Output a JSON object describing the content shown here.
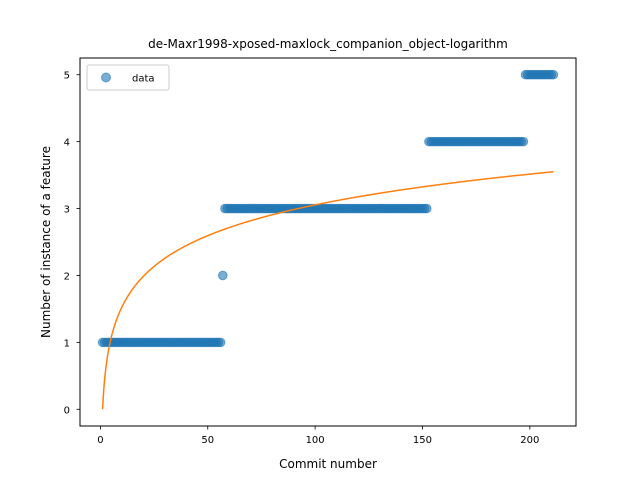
{
  "chart_data": {
    "type": "scatter",
    "title": "de-Maxr1998-xposed-maxlock_companion_object-logarithm",
    "xlabel": "Commit number",
    "ylabel": "Number of instance of a feature",
    "xlim": [
      -9.5,
      221.5
    ],
    "ylim": [
      -0.25,
      5.25
    ],
    "xticks": [
      0,
      50,
      100,
      150,
      200
    ],
    "yticks": [
      0,
      1,
      2,
      3,
      4,
      5
    ],
    "grid": false,
    "legend": {
      "placement": "top-left",
      "entries": [
        "data"
      ]
    },
    "series": [
      {
        "name": "data",
        "kind": "scatter",
        "color": "#1f77b4",
        "runs": [
          {
            "x_from": 1,
            "x_to": 56,
            "y": 1
          },
          {
            "x_from": 57,
            "x_to": 57,
            "y": 2
          },
          {
            "x_from": 58,
            "x_to": 152,
            "y": 3
          },
          {
            "x_from": 153,
            "x_to": 197,
            "y": 4
          },
          {
            "x_from": 198,
            "x_to": 211,
            "y": 5
          }
        ]
      },
      {
        "name": "",
        "kind": "line",
        "color": "#ff7f0e",
        "function": "logarithm",
        "x_from": 1,
        "x_to": 211,
        "points": [
          [
            1,
            0
          ],
          [
            211,
            3.55
          ]
        ]
      }
    ]
  }
}
